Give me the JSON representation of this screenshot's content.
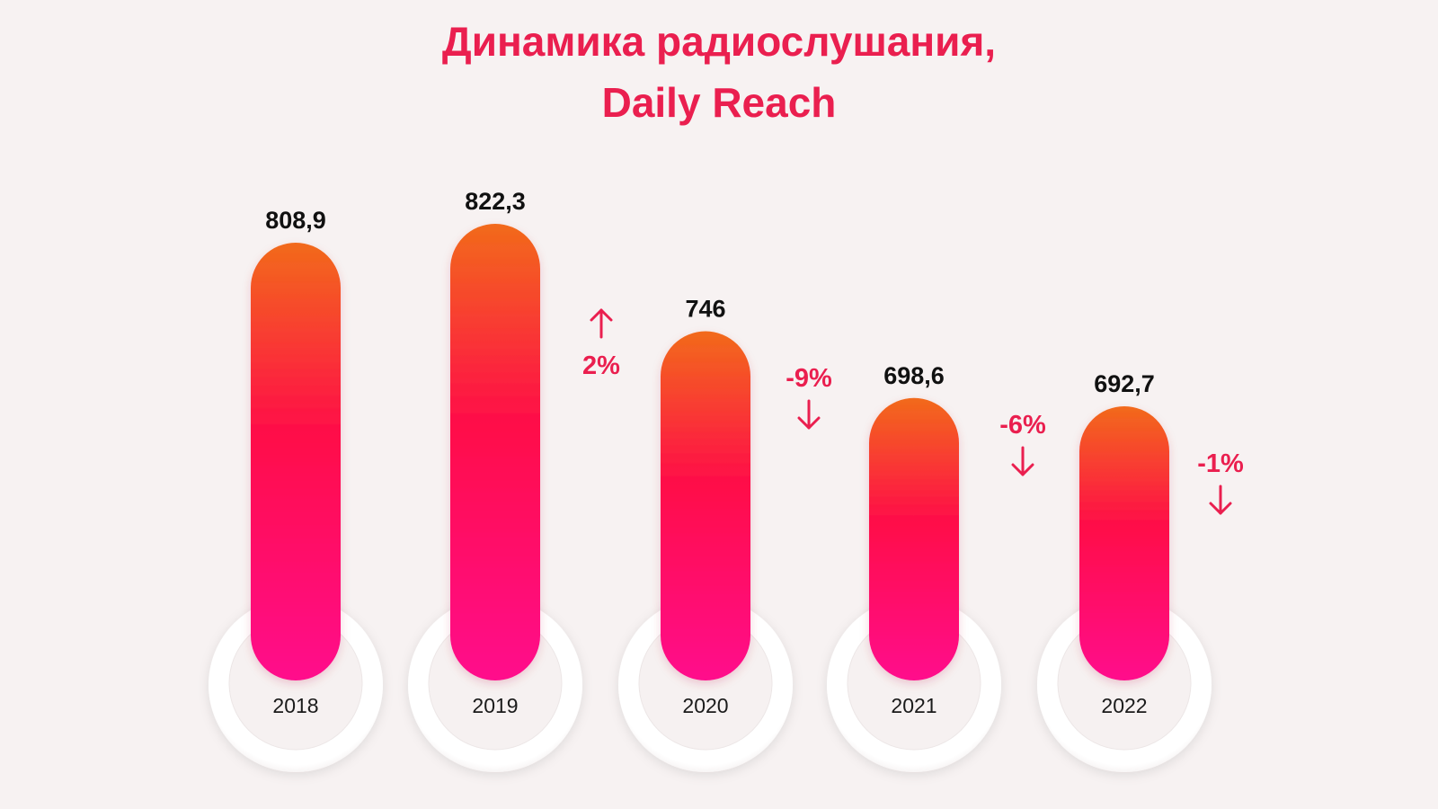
{
  "chart_data": {
    "type": "bar",
    "title": "Динамика радиослушания,",
    "subtitle": "Daily Reach",
    "categories": [
      "2018",
      "2019",
      "2020",
      "2021",
      "2022"
    ],
    "values": [
      808.9,
      822.3,
      746,
      698.6,
      692.7
    ],
    "value_labels": [
      "808,9",
      "822,3",
      "746",
      "698,6",
      "692,7"
    ],
    "changes": [
      {
        "label": "2%",
        "direction": "up"
      },
      {
        "label": "-9%",
        "direction": "down"
      },
      {
        "label": "-6%",
        "direction": "down"
      },
      {
        "label": "-1%",
        "direction": "down"
      }
    ],
    "colors": {
      "bar_top": "#f26a1b",
      "bar_mid": "#ff0a4a",
      "bar_bottom": "#ff0b8c",
      "title": "#ea1f4f",
      "change": "#ea1f4f",
      "background": "#f7f2f2"
    },
    "grid": false,
    "legend": "none"
  }
}
